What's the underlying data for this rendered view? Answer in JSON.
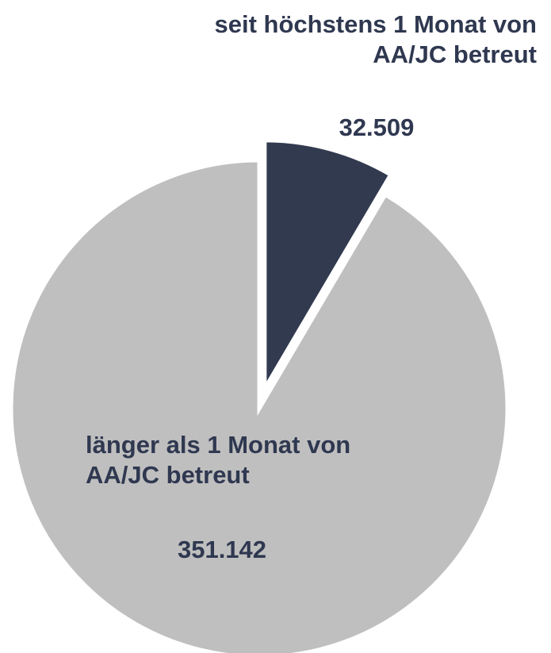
{
  "chart_data": {
    "type": "pie",
    "categories": [
      "seit höchstens 1 Monat von AA/JC betreut",
      "länger als 1 Monat von AA/JC betreut"
    ],
    "values": [
      32509,
      351142
    ],
    "value_labels": [
      "32.509",
      "351.142"
    ],
    "colors": [
      "#323a50",
      "#bfbfbf"
    ]
  }
}
